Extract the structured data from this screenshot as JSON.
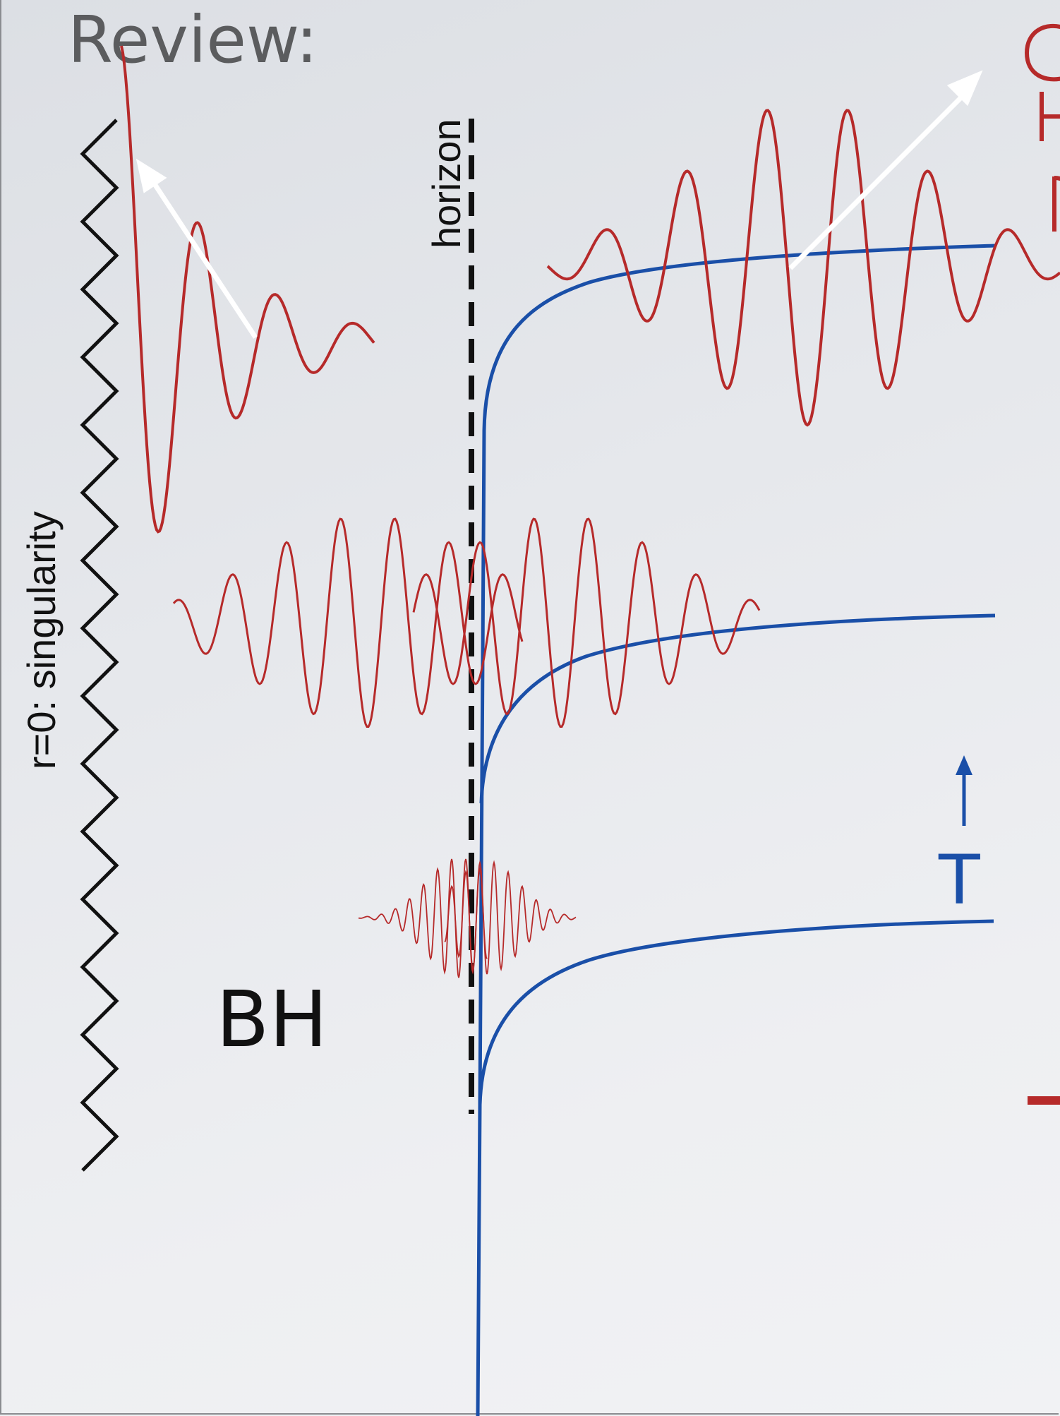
{
  "title": "Review:",
  "labels": {
    "singularity": "r=0: singularity",
    "horizon": "horizon",
    "black_hole": "BH",
    "time_axis": "T"
  },
  "colors": {
    "title": "#5b5c5e",
    "wavepacket": "#b62a2a",
    "slices": "#1a4fa8",
    "arrows": "#ffffff",
    "singularity": "#111111",
    "horizon": "#111111"
  },
  "icons": {
    "time_arrow": "arrow-up-icon"
  }
}
